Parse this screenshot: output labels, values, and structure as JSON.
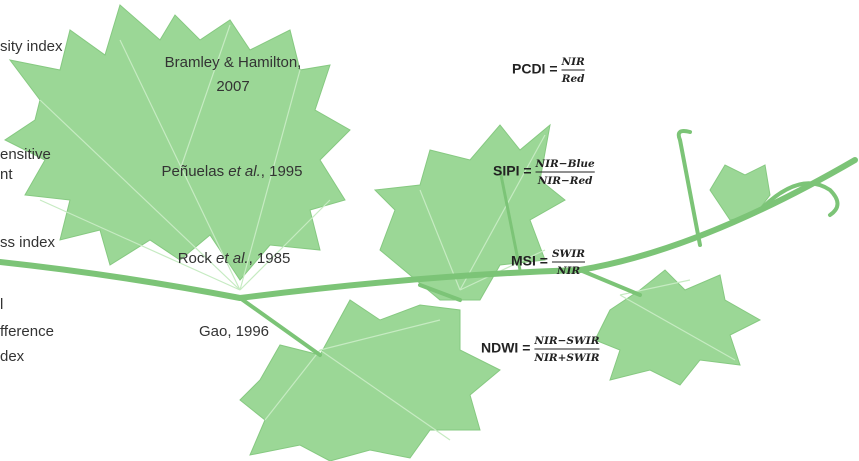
{
  "left_labels": [
    "sity index",
    "ensitive",
    "nt",
    "ss index",
    "l",
    "fference",
    "dex"
  ],
  "citations": {
    "bramley": [
      "Bramley & Hamilton,",
      "2007"
    ],
    "penuelas": [
      "Peñuelas ",
      "et al.",
      ", 1995"
    ],
    "rock": [
      "Rock ",
      "et al.",
      ", 1985"
    ],
    "gao": "Gao, 1996"
  },
  "formulas": [
    {
      "name": "PCDI =",
      "num": "NIR",
      "den": "Red"
    },
    {
      "name": "SIPI =",
      "num": "NIR−Blue",
      "den": "NIR−Red"
    },
    {
      "name": "MSI =",
      "num": "SWIR",
      "den": "NIR"
    },
    {
      "name": "NDWI =",
      "num": "NIR−SWIR",
      "den": "NIR+SWIR"
    }
  ]
}
